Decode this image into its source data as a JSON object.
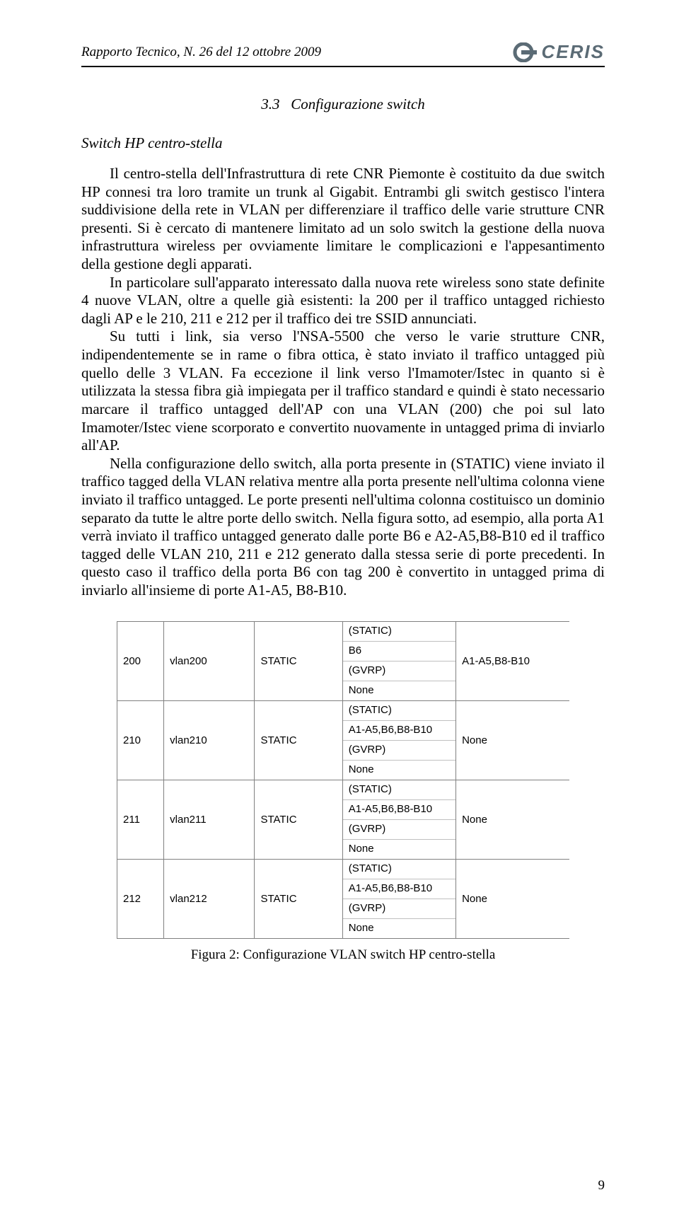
{
  "header": {
    "left": "Rapporto Tecnico, N. 26 del 12 ottobre 2009",
    "logo_text": "CERIS"
  },
  "section": {
    "number": "3.3",
    "title": "Configurazione switch"
  },
  "subsection_title": "Switch HP centro-stella",
  "paragraphs": {
    "p1": "Il centro-stella dell'Infrastruttura di rete CNR Piemonte è costituito da due switch HP connesi tra loro tramite un trunk al Gigabit. Entrambi gli switch gestisco l'intera suddivisione della rete in VLAN per differenziare il traffico delle varie strutture CNR presenti. Si è cercato di mantenere limitato ad un solo switch la gestione della nuova infrastruttura wireless per ovviamente limitare le complicazioni e l'appesantimento della gestione degli apparati.",
    "p2": "In particolare sull'apparato interessato dalla nuova rete wireless sono state definite 4 nuove VLAN, oltre a quelle già esistenti: la 200 per il traffico untagged richiesto dagli AP e le 210, 211 e 212 per il traffico dei tre SSID annunciati.",
    "p3": "Su tutti i link, sia verso l'NSA-5500 che verso le varie strutture CNR, indipendentemente se in rame o fibra ottica, è stato inviato il traffico untagged più quello delle 3 VLAN. Fa eccezione il link verso l'Imamoter/Istec in quanto si è utilizzata la stessa fibra già impiegata per il traffico standard e quindi è stato necessario marcare il traffico untagged dell'AP con una VLAN (200) che poi sul lato Imamoter/Istec viene scorporato e convertito nuovamente in untagged prima di inviarlo all'AP.",
    "p4": "Nella configurazione dello switch, alla porta presente in (STATIC) viene inviato il traffico tagged della VLAN relativa mentre alla porta presente nell'ultima colonna viene inviato il traffico untagged. Le porte presenti nell'ultima colonna costituisco un dominio separato da tutte le altre porte dello switch. Nella figura sotto, ad esempio, alla porta A1 verrà inviato il traffico untagged generato dalle porte B6 e A2-A5,B8-B10 ed il traffico tagged delle VLAN 210, 211 e 212 generato dalla stessa serie di porte precedenti. In questo caso il traffico della porta B6 con tag 200 è convertito in untagged prima di inviarlo all'insieme di porte A1-A5, B8-B10."
  },
  "vlan_table": {
    "rows": [
      {
        "id": "200",
        "name": "vlan200",
        "status": "STATIC",
        "ports": {
          "static": "(STATIC)",
          "list": "B6",
          "gvrp": "(GVRP)",
          "none": "None"
        },
        "untagged": "A1-A5,B8-B10"
      },
      {
        "id": "210",
        "name": "vlan210",
        "status": "STATIC",
        "ports": {
          "static": "(STATIC)",
          "list": "A1-A5,B6,B8-B10",
          "gvrp": "(GVRP)",
          "none": "None"
        },
        "untagged": "None"
      },
      {
        "id": "211",
        "name": "vlan211",
        "status": "STATIC",
        "ports": {
          "static": "(STATIC)",
          "list": "A1-A5,B6,B8-B10",
          "gvrp": "(GVRP)",
          "none": "None"
        },
        "untagged": "None"
      },
      {
        "id": "212",
        "name": "vlan212",
        "status": "STATIC",
        "ports": {
          "static": "(STATIC)",
          "list": "A1-A5,B6,B8-B10",
          "gvrp": "(GVRP)",
          "none": "None"
        },
        "untagged": "None"
      }
    ]
  },
  "figure_caption": "Figura 2: Configurazione VLAN switch HP centro-stella",
  "page_number": "9",
  "colors": {
    "text": "#000000",
    "logo": "#5b6b75",
    "rule": "#000000",
    "table_border": "#808080",
    "table_subborder": "#c0c0c0",
    "background": "#ffffff"
  }
}
